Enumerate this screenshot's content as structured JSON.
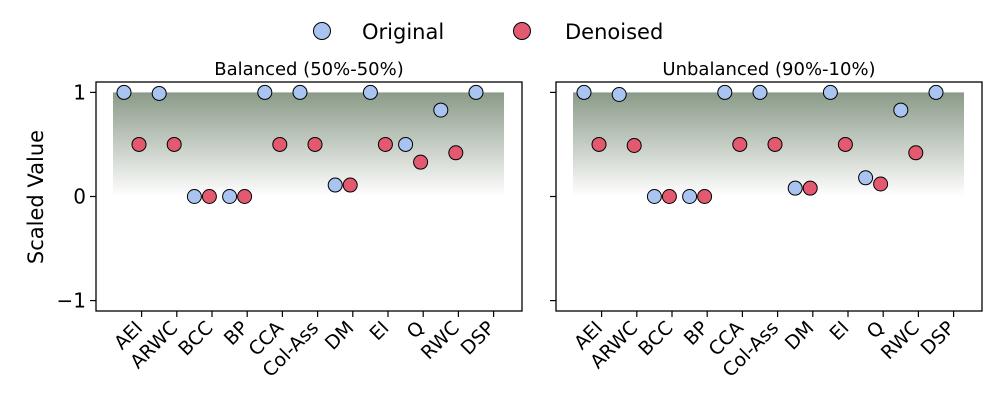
{
  "legend": {
    "placement": "top-center",
    "items": [
      {
        "label": "Original",
        "color": "#a9c4f0"
      },
      {
        "label": "Denoised",
        "color": "#e35a70"
      }
    ]
  },
  "chart_data": [
    {
      "type": "scatter",
      "title": "Balanced (50%-50%)",
      "ylabel": "Scaled Value",
      "ylim": [
        -1.1,
        1.1
      ],
      "yticks": [
        -1,
        0,
        1
      ],
      "ytick_labels": [
        "−1",
        "0",
        "1"
      ],
      "categories": [
        "AEI",
        "ARWC",
        "BCC",
        "BP",
        "CCA",
        "Col-Ass",
        "DM",
        "EI",
        "Q",
        "RWC",
        "DSP"
      ],
      "shaded_band": [
        0,
        1
      ],
      "series": [
        {
          "name": "Original",
          "values": [
            1.0,
            0.99,
            0.0,
            0.0,
            1.0,
            1.0,
            0.11,
            1.0,
            0.5,
            0.83,
            1.0
          ]
        },
        {
          "name": "Denoised",
          "values": [
            0.5,
            0.5,
            0.0,
            0.0,
            0.5,
            0.5,
            0.11,
            0.5,
            0.33,
            0.42,
            null
          ]
        }
      ]
    },
    {
      "type": "scatter",
      "title": "Unbalanced (90%-10%)",
      "ylabel": "",
      "ylim": [
        -1.1,
        1.1
      ],
      "yticks": [
        -1,
        0,
        1
      ],
      "ytick_labels": [
        "",
        "",
        ""
      ],
      "categories": [
        "AEI",
        "ARWC",
        "BCC",
        "BP",
        "CCA",
        "Col-Ass",
        "DM",
        "EI",
        "Q",
        "RWC",
        "DSP"
      ],
      "shaded_band": [
        0,
        1
      ],
      "series": [
        {
          "name": "Original",
          "values": [
            1.0,
            0.98,
            0.0,
            0.0,
            1.0,
            1.0,
            0.08,
            1.0,
            0.18,
            0.83,
            1.0
          ]
        },
        {
          "name": "Denoised",
          "values": [
            0.5,
            0.49,
            0.0,
            0.0,
            0.5,
            0.5,
            0.08,
            0.5,
            0.12,
            0.42,
            null
          ]
        }
      ]
    }
  ]
}
